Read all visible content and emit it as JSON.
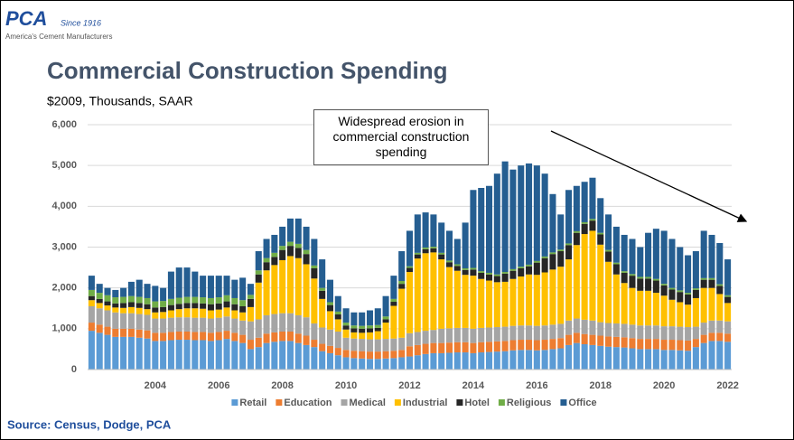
{
  "logo": {
    "name": "PCA",
    "since": "Since 1916",
    "tagline": "America's Cement Manufacturers"
  },
  "source": "Source:  Census, Dodge, PCA",
  "chart_data": {
    "type": "stacked_bar",
    "title": "Commercial Construction Spending",
    "subtitle": "$2009, Thousands, SAAR",
    "annotation": "Widespread erosion in commercial construction spending",
    "categories": [
      null,
      null,
      null,
      null,
      null,
      null,
      null,
      null,
      "2004",
      null,
      null,
      null,
      null,
      null,
      null,
      null,
      "2006",
      null,
      null,
      null,
      null,
      null,
      null,
      null,
      "2008",
      null,
      null,
      null,
      null,
      null,
      null,
      null,
      "2010",
      null,
      null,
      null,
      null,
      null,
      null,
      null,
      "2012",
      null,
      null,
      null,
      null,
      null,
      null,
      null,
      "2014",
      null,
      null,
      null,
      null,
      null,
      null,
      null,
      "2016",
      null,
      null,
      null,
      null,
      null,
      null,
      null,
      "2018",
      null,
      null,
      null,
      null,
      null,
      null,
      null,
      "2020",
      null,
      null,
      null,
      null,
      null,
      null,
      null,
      "2022"
    ],
    "ylim": [
      0,
      6000
    ],
    "yticks": [
      0,
      {
        "value": 1000,
        "label": "1,000"
      },
      {
        "value": 2000,
        "label": "2,000"
      },
      {
        "value": 3000,
        "label": "3,000"
      },
      {
        "value": 4000,
        "label": "4,000"
      },
      {
        "value": 5000,
        "label": "5,000"
      },
      {
        "value": 6000,
        "label": "6,000"
      }
    ],
    "grid": true,
    "legend": "bottom",
    "series": [
      {
        "name": "Retail",
        "color": "#5b9bd5",
        "values": [
          950,
          900,
          850,
          800,
          800,
          800,
          780,
          760,
          700,
          700,
          720,
          730,
          730,
          720,
          720,
          700,
          720,
          750,
          700,
          650,
          500,
          550,
          650,
          680,
          700,
          700,
          650,
          600,
          550,
          450,
          400,
          350,
          300,
          280,
          270,
          260,
          260,
          270,
          280,
          300,
          320,
          350,
          380,
          400,
          400,
          410,
          420,
          420,
          400,
          420,
          430,
          440,
          450,
          470,
          480,
          480,
          470,
          480,
          500,
          520,
          600,
          650,
          620,
          600,
          580,
          560,
          550,
          540,
          520,
          500,
          500,
          500,
          480,
          480,
          470,
          460,
          550,
          650,
          700,
          700,
          680
        ]
      },
      {
        "name": "Education",
        "color": "#ed7d31",
        "values": [
          200,
          200,
          200,
          200,
          200,
          200,
          200,
          200,
          200,
          200,
          200,
          200,
          200,
          200,
          200,
          200,
          200,
          200,
          200,
          200,
          230,
          230,
          230,
          230,
          230,
          230,
          230,
          230,
          180,
          180,
          180,
          180,
          180,
          180,
          180,
          180,
          180,
          180,
          180,
          180,
          250,
          250,
          250,
          250,
          250,
          250,
          250,
          250,
          250,
          250,
          250,
          250,
          250,
          250,
          250,
          250,
          250,
          250,
          250,
          250,
          250,
          250,
          250,
          250,
          250,
          250,
          250,
          250,
          250,
          250,
          250,
          250,
          250,
          250,
          250,
          250,
          200,
          200,
          200,
          200,
          200
        ]
      },
      {
        "name": "Medical",
        "color": "#a5a5a5",
        "values": [
          400,
          400,
          400,
          400,
          380,
          380,
          380,
          380,
          350,
          350,
          350,
          350,
          350,
          350,
          350,
          350,
          350,
          350,
          350,
          350,
          450,
          450,
          450,
          450,
          450,
          450,
          450,
          450,
          400,
          400,
          400,
          400,
          300,
          300,
          300,
          300,
          300,
          300,
          300,
          300,
          320,
          320,
          320,
          320,
          350,
          350,
          350,
          350,
          350,
          350,
          350,
          350,
          350,
          350,
          350,
          350,
          350,
          350,
          350,
          350,
          350,
          350,
          350,
          350,
          330,
          330,
          330,
          330,
          330,
          330,
          330,
          330,
          330,
          330,
          330,
          330,
          300,
          300,
          300,
          300,
          300
        ]
      },
      {
        "name": "Industrial",
        "color": "#ffc000",
        "values": [
          150,
          130,
          120,
          120,
          130,
          150,
          150,
          140,
          150,
          160,
          180,
          200,
          220,
          230,
          220,
          200,
          200,
          220,
          200,
          200,
          350,
          900,
          1100,
          1200,
          1300,
          1400,
          1400,
          1300,
          1100,
          700,
          450,
          300,
          200,
          150,
          150,
          170,
          200,
          400,
          800,
          1200,
          1500,
          1800,
          1900,
          1900,
          1700,
          1500,
          1400,
          1300,
          1300,
          1200,
          1150,
          1100,
          1100,
          1150,
          1200,
          1250,
          1250,
          1300,
          1350,
          1400,
          1500,
          1800,
          2100,
          2200,
          1900,
          1500,
          1200,
          1000,
          900,
          850,
          850,
          800,
          750,
          650,
          600,
          550,
          700,
          850,
          800,
          650,
          450
        ]
      },
      {
        "name": "Hotel",
        "color": "#262626",
        "values": [
          100,
          100,
          100,
          100,
          120,
          120,
          120,
          120,
          120,
          120,
          130,
          130,
          130,
          130,
          130,
          150,
          150,
          150,
          150,
          150,
          200,
          200,
          200,
          200,
          250,
          250,
          250,
          250,
          250,
          200,
          150,
          120,
          100,
          100,
          100,
          100,
          80,
          80,
          100,
          120,
          100,
          100,
          100,
          100,
          120,
          120,
          120,
          120,
          150,
          150,
          150,
          150,
          200,
          200,
          200,
          200,
          300,
          350,
          380,
          380,
          350,
          300,
          250,
          250,
          250,
          250,
          250,
          250,
          300,
          300,
          300,
          300,
          250,
          250,
          250,
          250,
          200,
          200,
          200,
          200,
          150
        ]
      },
      {
        "name": "Religious",
        "color": "#70ad47",
        "values": [
          150,
          150,
          150,
          150,
          150,
          150,
          150,
          150,
          150,
          150,
          150,
          150,
          150,
          150,
          150,
          150,
          150,
          150,
          150,
          150,
          100,
          100,
          100,
          100,
          100,
          100,
          100,
          100,
          70,
          70,
          70,
          70,
          70,
          70,
          70,
          70,
          70,
          70,
          70,
          70,
          40,
          40,
          40,
          40,
          40,
          40,
          40,
          40,
          40,
          40,
          40,
          40,
          40,
          40,
          40,
          40,
          40,
          40,
          40,
          40,
          40,
          40,
          40,
          40,
          40,
          40,
          40,
          40,
          40,
          40,
          40,
          40,
          40,
          40,
          40,
          40,
          40,
          40,
          40,
          40,
          40
        ]
      },
      {
        "name": "Office",
        "color": "#255e91",
        "values": [
          350,
          220,
          180,
          180,
          220,
          350,
          420,
          350,
          380,
          320,
          670,
          740,
          720,
          620,
          530,
          550,
          530,
          480,
          450,
          550,
          270,
          470,
          470,
          440,
          470,
          570,
          620,
          570,
          650,
          700,
          550,
          380,
          350,
          320,
          330,
          370,
          410,
          500,
          570,
          730,
          870,
          940,
          860,
          790,
          740,
          730,
          620,
          1120,
          1910,
          2040,
          2130,
          2470,
          2710,
          2440,
          2480,
          2480,
          2340,
          2030,
          1430,
          860,
          1310,
          1110,
          990,
          1010,
          850,
          870,
          880,
          890,
          860,
          730,
          1080,
          1230,
          1300,
          1200,
          1060,
          920,
          910,
          1160,
          1060,
          1010,
          880
        ]
      }
    ]
  }
}
